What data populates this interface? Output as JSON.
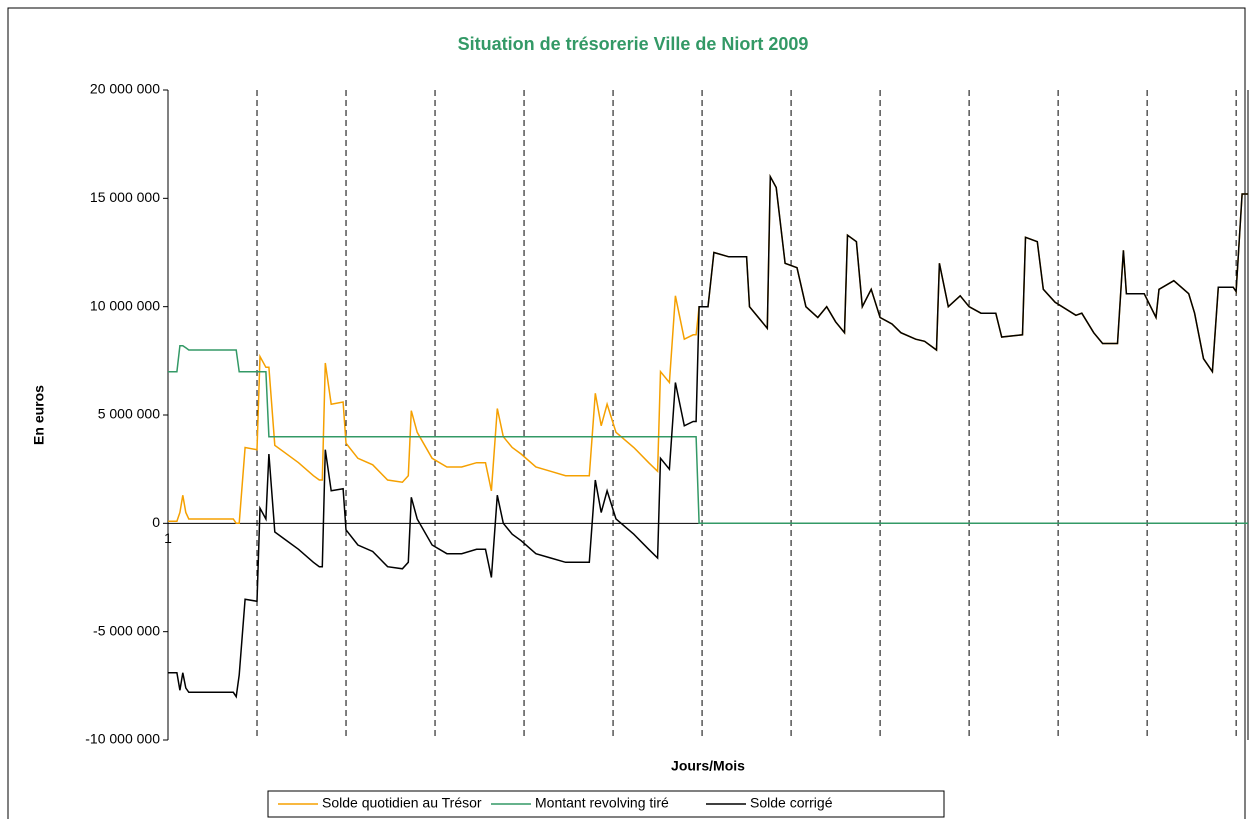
{
  "chart_data": {
    "type": "line",
    "title": "Situation de trésorerie Ville de Niort 2009",
    "ylabel": "En euros",
    "xlabel": "Jours/Mois",
    "x": [
      1,
      4,
      5,
      6,
      7,
      8,
      9,
      23,
      24,
      25,
      27,
      31,
      32,
      34,
      35,
      37,
      40,
      45,
      50,
      52,
      53,
      54,
      56,
      60,
      61,
      65,
      70,
      75,
      80,
      82,
      83,
      85,
      90,
      95,
      100,
      105,
      108,
      110,
      112,
      114,
      117,
      120,
      125,
      130,
      135,
      143,
      145,
      147,
      149,
      152,
      158,
      163,
      166,
      167,
      170,
      172,
      175,
      178,
      179,
      180,
      181,
      183,
      185,
      190,
      196,
      197,
      200,
      203,
      204,
      206,
      209,
      213,
      216,
      220,
      223,
      226,
      229,
      230,
      233,
      235,
      238,
      241,
      245,
      248,
      253,
      256,
      260,
      261,
      264,
      268,
      271,
      275,
      280,
      282,
      289,
      290,
      294,
      296,
      300,
      307,
      309,
      313,
      316,
      321,
      323,
      324,
      330,
      334,
      335,
      340,
      345,
      347,
      350,
      353,
      355,
      360,
      361,
      363,
      365
    ],
    "series": [
      {
        "name": "Solde quotidien au Trésor",
        "color": "#f5a000",
        "values": [
          100000,
          100000,
          500000,
          1300000,
          500000,
          200000,
          200000,
          200000,
          0,
          0,
          3500000,
          3400000,
          7700000,
          7200000,
          7200000,
          3600000,
          3300000,
          2800000,
          2200000,
          2000000,
          2000000,
          7400000,
          5500000,
          5600000,
          3700000,
          3000000,
          2700000,
          2000000,
          1900000,
          2200000,
          5200000,
          4200000,
          3000000,
          2600000,
          2600000,
          2800000,
          2800000,
          1500000,
          5300000,
          4000000,
          3500000,
          3200000,
          2600000,
          2400000,
          2200000,
          2200000,
          6000000,
          4500000,
          5500000,
          4200000,
          3500000,
          2800000,
          2400000,
          7000000,
          6500000,
          10500000,
          8500000,
          8700000,
          8700000,
          10000000,
          10000000,
          10000000,
          12500000,
          12300000,
          12300000,
          10000000,
          9500000,
          9000000,
          16000000,
          15500000,
          12000000,
          11800000,
          10000000,
          9500000,
          10000000,
          9300000,
          8800000,
          13300000,
          13000000,
          10000000,
          10800000,
          9500000,
          9200000,
          8800000,
          8500000,
          8400000,
          8000000,
          12000000,
          10000000,
          10500000,
          10000000,
          9700000,
          9700000,
          8600000,
          8700000,
          13200000,
          13000000,
          10800000,
          10200000,
          9600000,
          9700000,
          8800000,
          8300000,
          8300000,
          12600000,
          10600000,
          10600000,
          9500000,
          10800000,
          11200000,
          10600000,
          9700000,
          7600000,
          7000000,
          10900000,
          10900000,
          10700000,
          15200000,
          15200000
        ]
      },
      {
        "name": "Montant revolving tiré",
        "color": "#339966",
        "values": [
          7000000,
          7000000,
          8200000,
          8200000,
          8100000,
          8000000,
          8000000,
          8000000,
          8000000,
          7000000,
          7000000,
          7000000,
          7000000,
          7000000,
          4000000,
          4000000,
          4000000,
          4000000,
          4000000,
          4000000,
          4000000,
          4000000,
          4000000,
          4000000,
          4000000,
          4000000,
          4000000,
          4000000,
          4000000,
          4000000,
          4000000,
          4000000,
          4000000,
          4000000,
          4000000,
          4000000,
          4000000,
          4000000,
          4000000,
          4000000,
          4000000,
          4000000,
          4000000,
          4000000,
          4000000,
          4000000,
          4000000,
          4000000,
          4000000,
          4000000,
          4000000,
          4000000,
          4000000,
          4000000,
          4000000,
          4000000,
          4000000,
          4000000,
          4000000,
          0,
          0,
          0,
          0,
          0,
          0,
          0,
          0,
          0,
          0,
          0,
          0,
          0,
          0,
          0,
          0,
          0,
          0,
          0,
          0,
          0,
          0,
          0,
          0,
          0,
          0,
          0,
          0,
          0,
          0,
          0,
          0,
          0,
          0,
          0,
          0,
          0,
          0,
          0,
          0,
          0,
          0,
          0,
          0,
          0,
          0,
          0,
          0,
          0,
          0,
          0,
          0,
          0,
          0,
          0,
          0,
          0,
          0,
          0,
          0
        ]
      },
      {
        "name": "Solde corrigé",
        "color": "#000000",
        "values": [
          -6900000,
          -6900000,
          -7700000,
          -6900000,
          -7600000,
          -7800000,
          -7800000,
          -7800000,
          -8000000,
          -7000000,
          -3500000,
          -3600000,
          700000,
          200000,
          3200000,
          -400000,
          -700000,
          -1200000,
          -1800000,
          -2000000,
          -2000000,
          3400000,
          1500000,
          1600000,
          -300000,
          -1000000,
          -1300000,
          -2000000,
          -2100000,
          -1800000,
          1200000,
          200000,
          -1000000,
          -1400000,
          -1400000,
          -1200000,
          -1200000,
          -2500000,
          1300000,
          0,
          -500000,
          -800000,
          -1400000,
          -1600000,
          -1800000,
          -1800000,
          2000000,
          500000,
          1500000,
          200000,
          -500000,
          -1200000,
          -1600000,
          3000000,
          2500000,
          6500000,
          4500000,
          4700000,
          4700000,
          10000000,
          10000000,
          10000000,
          12500000,
          12300000,
          12300000,
          10000000,
          9500000,
          9000000,
          16000000,
          15500000,
          12000000,
          11800000,
          10000000,
          9500000,
          10000000,
          9300000,
          8800000,
          13300000,
          13000000,
          10000000,
          10800000,
          9500000,
          9200000,
          8800000,
          8500000,
          8400000,
          8000000,
          12000000,
          10000000,
          10500000,
          10000000,
          9700000,
          9700000,
          8600000,
          8700000,
          13200000,
          13000000,
          10800000,
          10200000,
          9600000,
          9700000,
          8800000,
          8300000,
          8300000,
          12600000,
          10600000,
          10600000,
          9500000,
          10800000,
          11200000,
          10600000,
          9700000,
          7600000,
          7000000,
          10900000,
          10900000,
          10700000,
          15200000,
          15200000
        ]
      }
    ],
    "xlim": [
      1,
      365
    ],
    "xticks": [
      1
    ],
    "vlines": [
      31,
      61,
      91,
      121,
      151,
      181,
      211,
      241,
      271,
      301,
      331,
      361
    ],
    "ylim": [
      -10000000,
      20000000
    ],
    "yticks": [
      {
        "value": -10000000,
        "label": "-10 000 000"
      },
      {
        "value": -5000000,
        "label": "-5 000 000"
      },
      0,
      {
        "value": 5000000,
        "label": "5 000 000"
      },
      {
        "value": 10000000,
        "label": "10 000 000"
      },
      {
        "value": 15000000,
        "label": "15 000 000"
      },
      {
        "value": 20000000,
        "label": "20 000 000"
      }
    ],
    "title_color": "#339966",
    "legend": "bottom"
  }
}
